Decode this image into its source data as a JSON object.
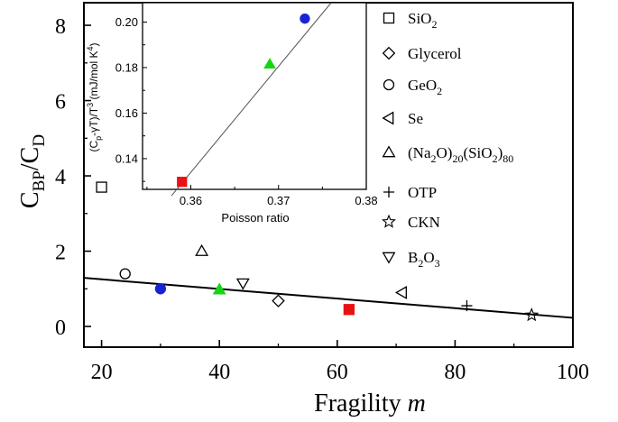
{
  "chart_data": [
    {
      "type": "scatter",
      "panel": "main",
      "xlabel": "Fragility",
      "xlabel_var": "m",
      "ylabel_main": "C",
      "ylabel_sub1": "BP",
      "ylabel_mid": "/C",
      "ylabel_sub2": "D",
      "xlim": [
        17,
        100
      ],
      "ylim": [
        -0.55,
        8.6
      ],
      "xticks": [
        20,
        40,
        60,
        80,
        100
      ],
      "yticks": [
        0,
        2,
        4,
        6,
        8
      ],
      "series": [
        {
          "name": "SiO2",
          "label": {
            "base": "SiO",
            "sub": "2"
          },
          "marker": "square-open",
          "x": 20,
          "y": 3.7
        },
        {
          "name": "Glycerol",
          "label": {
            "base": "Glycerol"
          },
          "marker": "diamond-open",
          "x": 50,
          "y": 0.68
        },
        {
          "name": "GeO2",
          "label": {
            "base": "GeO",
            "sub": "2"
          },
          "marker": "circle-open",
          "x": 24,
          "y": 1.4
        },
        {
          "name": "Se",
          "label": {
            "base": "Se"
          },
          "marker": "triangle-left-open",
          "x": 71,
          "y": 0.9
        },
        {
          "name": "(Na2O)20(SiO2)80",
          "label": {
            "parts": [
              [
                "(Na",
                ""
              ],
              [
                "2",
                "sub"
              ],
              [
                "O)",
                ""
              ],
              [
                "20",
                "sub"
              ],
              [
                "(SiO",
                ""
              ],
              [
                "2",
                "sub"
              ],
              [
                ")",
                ""
              ],
              [
                "80",
                "sub"
              ]
            ]
          },
          "marker": "triangle-up-open",
          "x": 37,
          "y": 2.0
        },
        {
          "name": "OTP",
          "label": {
            "base": "OTP"
          },
          "marker": "plus",
          "x": 82,
          "y": 0.55
        },
        {
          "name": "CKN",
          "label": {
            "base": "CKN"
          },
          "marker": "star-open",
          "x": 93,
          "y": 0.3
        },
        {
          "name": "B2O3",
          "label": {
            "base": "B",
            "sub1": "2",
            "mid": "O",
            "sub2": "3"
          },
          "marker": "triangle-down-open",
          "x": 44,
          "y": 1.15
        }
      ],
      "extra_points": [
        {
          "marker": "circle-filled",
          "color": "#1a22d6",
          "x": 30,
          "y": 1.0
        },
        {
          "marker": "triangle-up-filled",
          "color": "#15d615",
          "x": 40,
          "y": 0.98
        },
        {
          "marker": "square-filled",
          "color": "#e81212",
          "x": 62,
          "y": 0.45
        }
      ],
      "fit_line": {
        "x": [
          17,
          100
        ],
        "y": [
          1.29,
          0.23
        ]
      }
    },
    {
      "type": "scatter",
      "panel": "inset",
      "xlabel": "Poisson ratio",
      "ylabel": "(C_p-γT)/T^3 (mJ/mol K^4)",
      "ylabel_parts": {
        "a": "(C",
        "a_sub": "p",
        "b": "-γT)/T",
        "b_sup": "3",
        "c": " (mJ/mol K",
        "c_sup": "4",
        "d": ")"
      },
      "xlim": [
        0.3545,
        0.38
      ],
      "ylim": [
        0.1265,
        0.2085
      ],
      "xticks": [
        "0.36",
        "0.37",
        "0.38"
      ],
      "xtick_values": [
        0.36,
        0.37,
        0.38
      ],
      "yticks": [
        "0.14",
        "0.16",
        "0.18",
        "0.20"
      ],
      "ytick_values": [
        0.14,
        0.16,
        0.18,
        0.2
      ],
      "points": [
        {
          "marker": "square-filled",
          "color": "#e81212",
          "x": 0.359,
          "y": 0.1298
        },
        {
          "marker": "triangle-up-filled",
          "color": "#15d615",
          "x": 0.369,
          "y": 0.1815
        },
        {
          "marker": "circle-filled",
          "color": "#1a22d6",
          "x": 0.373,
          "y": 0.2015
        }
      ],
      "fit_line": {
        "x": [
          0.3578,
          0.376
        ],
        "y": [
          0.1237,
          0.2085
        ]
      }
    }
  ],
  "colors": {
    "axis": "#000000",
    "fit": "#000000",
    "inset_fit": "#555555"
  }
}
